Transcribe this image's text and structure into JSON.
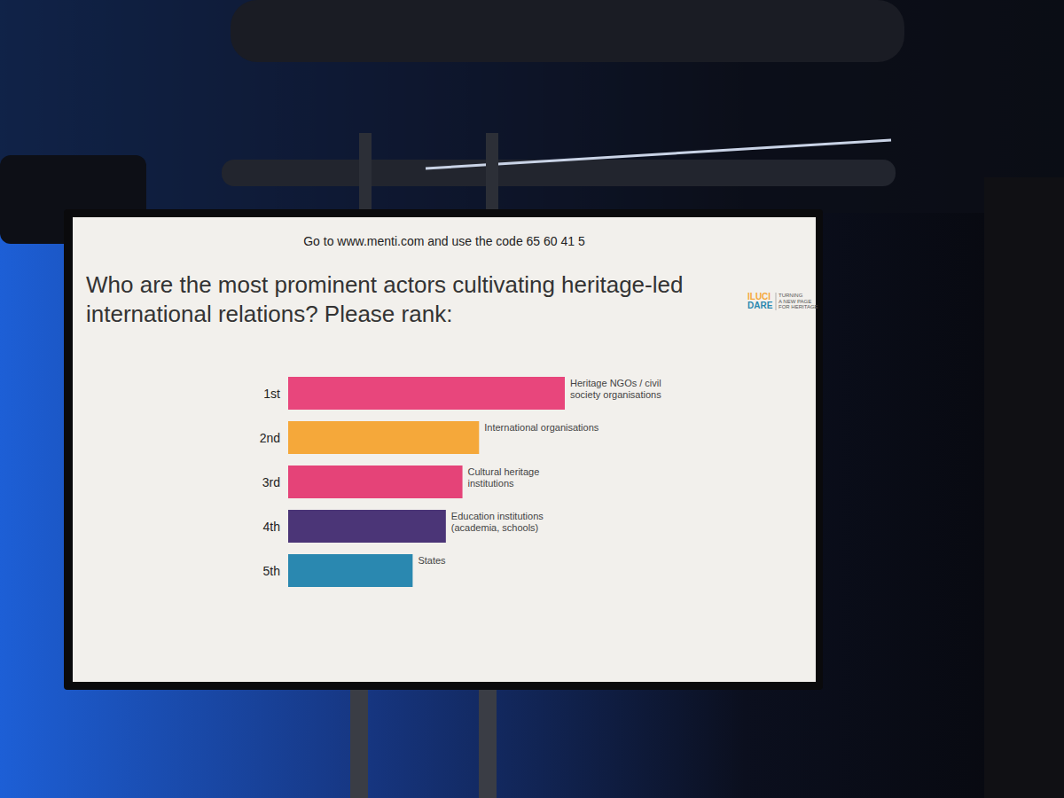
{
  "chart_data": {
    "type": "bar",
    "orientation": "horizontal",
    "title": "Who are the most prominent actors cultivating heritage-led international relations? Please rank:",
    "annotations": [
      "Go to www.menti.com and use the code 65 60 41 5",
      "ILUCI",
      "DARE",
      "TURNING",
      "A NEW PAGE",
      "FOR HERITAGE"
    ],
    "rank_labels": [
      "1st",
      "2nd",
      "3rd",
      "4th",
      "5th"
    ],
    "categories": [
      "Heritage NGOs / civil society organisations",
      "International organisations",
      "Cultural heritage institutions",
      "Education institutions (academia, schools)",
      "States"
    ],
    "values": [
      100,
      69,
      63,
      57,
      45
    ],
    "colors": [
      "#e8467c",
      "#f5a83a",
      "#e54378",
      "#4b3577",
      "#2a88b0"
    ],
    "xlim": [
      0,
      100
    ],
    "grid": false,
    "data_labels": false,
    "tick_labels": false
  }
}
